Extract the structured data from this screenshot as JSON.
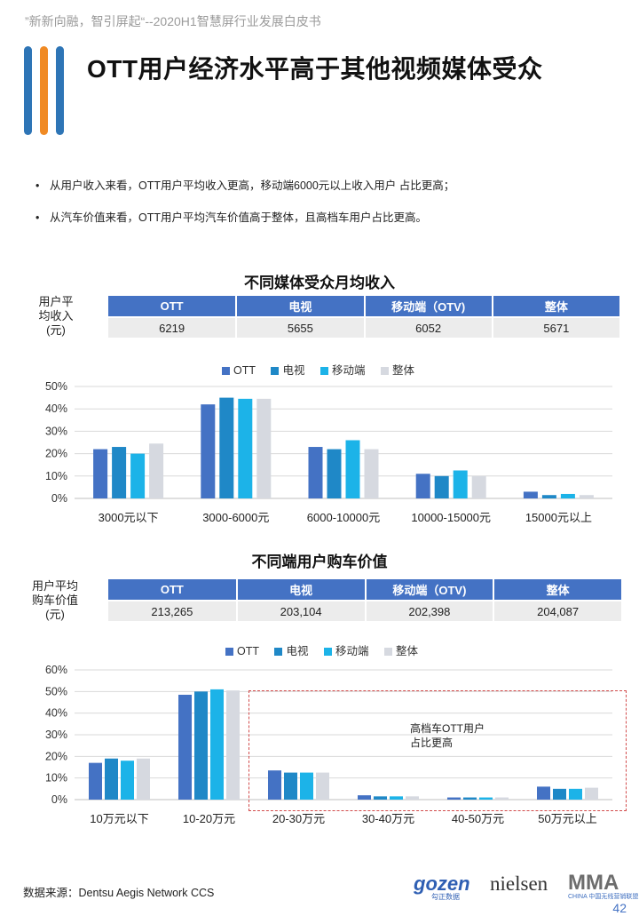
{
  "header_note": "”新新向融，智引屏起“--2020H1智慧屏行业发展白皮书",
  "title": "OTT用户经济水平高于其他视频媒体受众",
  "bullets": [
    "从用户收入来看，OTT用户平均收入更高，移动端6000元以上收入用户 占比更高；",
    "从汽车价值来看，OTT用户平均汽车价值高于整体，且高档车用户占比更高。"
  ],
  "colors": {
    "ott": "#4472C4",
    "tv": "#1F88C7",
    "mobile": "#1CB3E8",
    "overall": "#D6D9E0",
    "accent_bar_blue": "#2E75B6",
    "accent_bar_orange": "#F08A24"
  },
  "income_section": {
    "title": "不同媒体受众月均收入",
    "row_label": "用户平均收入(元)",
    "row_label_lines": [
      "用户平",
      "均收入",
      "(元)"
    ],
    "headers": [
      "OTT",
      "电视",
      "移动端（OTV)",
      "整体"
    ],
    "values": [
      "6219",
      "5655",
      "6052",
      "5671"
    ]
  },
  "car_section": {
    "title": "不同端用户购车价值",
    "row_label": "用户平均购车价值(元)",
    "row_label_lines": [
      "用户平均",
      "购车价值",
      "(元)"
    ],
    "headers": [
      "OTT",
      "电视",
      "移动端（OTV)",
      "整体"
    ],
    "values": [
      "213,265",
      "203,104",
      "202,398",
      "204,087"
    ],
    "annotation": [
      "高档车OTT用户",
      "占比更高"
    ]
  },
  "legend": [
    "OTT",
    "电视",
    "移动端",
    "整体"
  ],
  "chart_data": [
    {
      "type": "bar",
      "title": "不同媒体受众月均收入",
      "categories": [
        "3000元以下",
        "3000-6000元",
        "6000-10000元",
        "10000-15000元",
        "15000元以上"
      ],
      "series": [
        {
          "name": "OTT",
          "values": [
            22,
            42,
            23,
            11,
            3
          ]
        },
        {
          "name": "电视",
          "values": [
            23,
            45,
            22,
            10,
            1.5
          ]
        },
        {
          "name": "移动端",
          "values": [
            20,
            44.5,
            26,
            12.5,
            2
          ]
        },
        {
          "name": "整体",
          "values": [
            24.5,
            44.5,
            22,
            10,
            1.5
          ]
        }
      ],
      "yticks": [
        "0%",
        "10%",
        "20%",
        "30%",
        "40%",
        "50%"
      ],
      "ylim": [
        0,
        50
      ],
      "grid": true,
      "legend_position": "top"
    },
    {
      "type": "bar",
      "title": "不同端用户购车价值",
      "categories": [
        "10万元以下",
        "10-20万元",
        "20-30万元",
        "30-40万元",
        "40-50万元",
        "50万元以上"
      ],
      "series": [
        {
          "name": "OTT",
          "values": [
            17,
            48.5,
            13.5,
            2,
            1,
            6
          ]
        },
        {
          "name": "电视",
          "values": [
            19,
            50,
            12.5,
            1.5,
            1,
            5
          ]
        },
        {
          "name": "移动端",
          "values": [
            18,
            51,
            12.5,
            1.5,
            1,
            5
          ]
        },
        {
          "name": "整体",
          "values": [
            19,
            50.5,
            12.5,
            1.5,
            1,
            5.5
          ]
        }
      ],
      "yticks": [
        "0%",
        "10%",
        "20%",
        "30%",
        "40%",
        "50%",
        "60%"
      ],
      "ylim": [
        0,
        60
      ],
      "grid": true,
      "legend_position": "top"
    }
  ],
  "footer": {
    "source": "数据来源：Dentsu  Aegis  Network  CCS",
    "page": "42",
    "logos": {
      "gozen": "gozen",
      "gozen_sub": "勾正数据",
      "nielsen": "nielsen",
      "mma": "MMA",
      "mma_sub": "CHINA 中国无线营销联盟"
    }
  }
}
